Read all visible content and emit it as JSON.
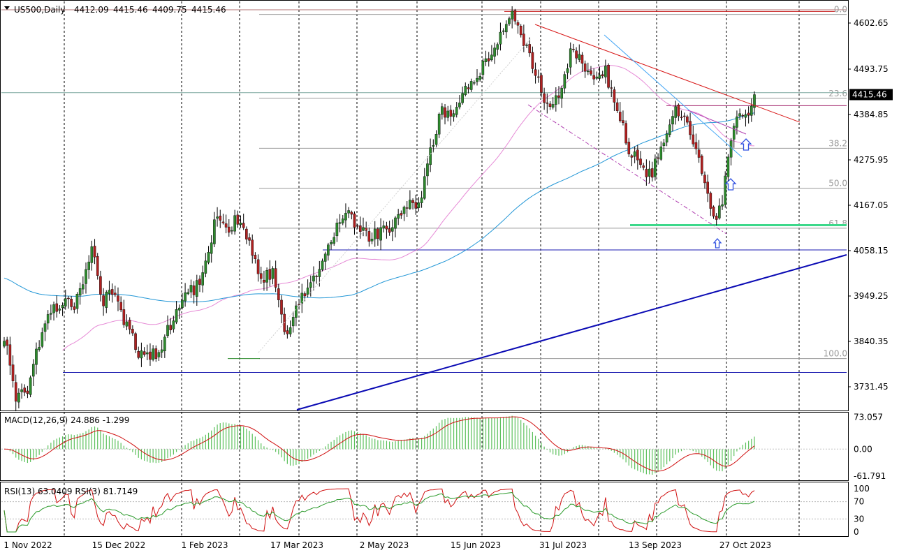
{
  "chart_data": {
    "type": "candlestick",
    "title": {
      "symbol": "US500,Daily",
      "open": "4412.09",
      "high": "4415.46",
      "low": "4409.75",
      "close": "4415.46"
    },
    "current_price": 4415.46,
    "current_price_label": "4415.46",
    "ylim": [
      3690,
      4630
    ],
    "price_axis_ticks": [
      "4602.65",
      "4493.75",
      "4384.85",
      "4275.95",
      "4167.05",
      "4058.15",
      "3949.25",
      "3840.35",
      "3731.45"
    ],
    "x_axis_labels": [
      "1 Nov 2022",
      "15 Dec 2022",
      "1 Feb 2023",
      "17 Mar 2023",
      "2 May 2023",
      "15 Jun 2023",
      "31 Jul 2023",
      "13 Sep 2023",
      "27 Oct 2023"
    ],
    "fibonacci": [
      {
        "label": "0.0",
        "price": 4600
      },
      {
        "label": "23.6",
        "price": 4407
      },
      {
        "label": "38.2",
        "price": 4292
      },
      {
        "label": "50.0",
        "price": 4200
      },
      {
        "label": "61.8",
        "price": 4108
      },
      {
        "label": "100.0",
        "price": 3808
      }
    ],
    "waypoints": [
      [
        0,
        3860
      ],
      [
        4,
        3710
      ],
      [
        8,
        3740
      ],
      [
        12,
        3850
      ],
      [
        16,
        3925
      ],
      [
        20,
        3940
      ],
      [
        24,
        3935
      ],
      [
        28,
        4015
      ],
      [
        30,
        4060
      ],
      [
        34,
        3940
      ],
      [
        38,
        3960
      ],
      [
        42,
        3880
      ],
      [
        46,
        3820
      ],
      [
        50,
        3810
      ],
      [
        54,
        3830
      ],
      [
        58,
        3910
      ],
      [
        62,
        3950
      ],
      [
        66,
        3975
      ],
      [
        70,
        4050
      ],
      [
        72,
        4130
      ],
      [
        76,
        4110
      ],
      [
        80,
        4125
      ],
      [
        84,
        4080
      ],
      [
        88,
        4000
      ],
      [
        92,
        4000
      ],
      [
        94,
        3945
      ],
      [
        96,
        3880
      ],
      [
        98,
        3870
      ],
      [
        102,
        3960
      ],
      [
        106,
        3995
      ],
      [
        110,
        4055
      ],
      [
        114,
        4110
      ],
      [
        118,
        4145
      ],
      [
        122,
        4105
      ],
      [
        126,
        4085
      ],
      [
        130,
        4115
      ],
      [
        134,
        4115
      ],
      [
        138,
        4170
      ],
      [
        142,
        4160
      ],
      [
        144,
        4230
      ],
      [
        146,
        4280
      ],
      [
        150,
        4380
      ],
      [
        154,
        4370
      ],
      [
        158,
        4430
      ],
      [
        162,
        4455
      ],
      [
        166,
        4500
      ],
      [
        170,
        4560
      ],
      [
        174,
        4595
      ],
      [
        176,
        4580
      ],
      [
        178,
        4535
      ],
      [
        182,
        4475
      ],
      [
        186,
        4380
      ],
      [
        190,
        4405
      ],
      [
        194,
        4510
      ],
      [
        198,
        4485
      ],
      [
        202,
        4455
      ],
      [
        206,
        4470
      ],
      [
        210,
        4380
      ],
      [
        214,
        4290
      ],
      [
        218,
        4250
      ],
      [
        222,
        4235
      ],
      [
        226,
        4310
      ],
      [
        230,
        4380
      ],
      [
        234,
        4360
      ],
      [
        238,
        4260
      ],
      [
        240,
        4215
      ],
      [
        242,
        4155
      ],
      [
        244,
        4140
      ],
      [
        246,
        4170
      ],
      [
        248,
        4280
      ],
      [
        250,
        4340
      ],
      [
        254,
        4370
      ],
      [
        257,
        4413
      ]
    ],
    "moving_averages": [
      {
        "name": "sma50",
        "color": "#e68ad6"
      },
      {
        "name": "sma200",
        "color": "#2196d6"
      }
    ],
    "macd": {
      "label": "MACD(12,26,9) 24.886 -1.299",
      "ticks": [
        "73.057",
        "0.00",
        "-61.791"
      ],
      "range": [
        -70,
        82
      ]
    },
    "rsi": {
      "label": "RSI(13) 63.0409  RSI(3) 81.7149",
      "ticks": [
        "100",
        "70",
        "30",
        "0"
      ]
    },
    "colors": {
      "bull": "#2d8a2d",
      "bear": "#b02020",
      "grid": "#000000",
      "trend_blue": "#0a0ab4",
      "horizontal_blue": "#1a1ab0",
      "resistance_red": "#d81818",
      "support_green": "#3cd88a",
      "channel_purple": "#b040b0",
      "fib_gray": "#9a9a9a",
      "arrow_blue": "#3050e0",
      "macd_hist": "#5cc05c",
      "macd_signal": "#d01010",
      "rsi13": "#2a9a2a",
      "rsi3": "#d01010"
    }
  }
}
